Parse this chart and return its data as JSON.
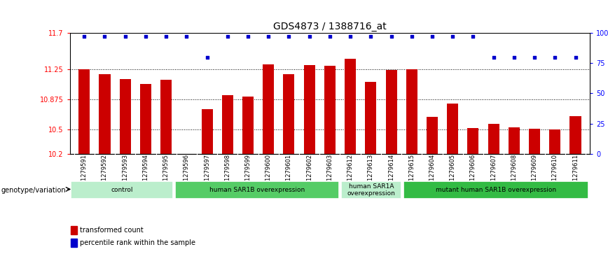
{
  "title": "GDS4873 / 1388716_at",
  "samples": [
    "GSM1279591",
    "GSM1279592",
    "GSM1279593",
    "GSM1279594",
    "GSM1279595",
    "GSM1279596",
    "GSM1279597",
    "GSM1279598",
    "GSM1279599",
    "GSM1279600",
    "GSM1279601",
    "GSM1279602",
    "GSM1279603",
    "GSM1279612",
    "GSM1279613",
    "GSM1279614",
    "GSM1279615",
    "GSM1279604",
    "GSM1279605",
    "GSM1279606",
    "GSM1279607",
    "GSM1279608",
    "GSM1279609",
    "GSM1279610",
    "GSM1279611"
  ],
  "bar_values": [
    11.25,
    11.19,
    11.13,
    11.07,
    11.12,
    10.2,
    10.75,
    10.93,
    10.91,
    11.31,
    11.19,
    11.3,
    11.29,
    11.38,
    11.09,
    11.24,
    11.25,
    10.66,
    10.82,
    10.52,
    10.57,
    10.53,
    10.51,
    10.5,
    10.67
  ],
  "percentile_values": [
    97,
    97,
    97,
    97,
    97,
    97,
    80,
    97,
    97,
    97,
    97,
    97,
    97,
    97,
    97,
    97,
    97,
    97,
    97,
    97,
    80,
    80,
    80,
    80,
    80
  ],
  "ylim": [
    10.2,
    11.7
  ],
  "yticks": [
    10.2,
    10.5,
    10.875,
    11.25,
    11.7
  ],
  "ytick_labels": [
    "10.2",
    "10.5",
    "10.875",
    "11.25",
    "11.7"
  ],
  "right_yticks": [
    0,
    25,
    50,
    75,
    100
  ],
  "right_ytick_labels": [
    "0",
    "25",
    "50",
    "75",
    "100%"
  ],
  "hlines": [
    10.5,
    10.875,
    11.25
  ],
  "bar_color": "#cc0000",
  "dot_color": "#0000cc",
  "groups": [
    {
      "label": "control",
      "start": 0,
      "end": 4,
      "color": "#bbeecc"
    },
    {
      "label": "human SAR1B overexpression",
      "start": 5,
      "end": 12,
      "color": "#55cc66"
    },
    {
      "label": "human SAR1A\noverexpression",
      "start": 13,
      "end": 15,
      "color": "#bbeecc"
    },
    {
      "label": "mutant human SAR1B overexpression",
      "start": 16,
      "end": 24,
      "color": "#33bb44"
    }
  ],
  "xtick_bg": "#cccccc",
  "genotype_label": "genotype/variation",
  "legend_bar_label": "transformed count",
  "legend_dot_label": "percentile rank within the sample",
  "title_fontsize": 10,
  "tick_fontsize": 6.5,
  "bar_width": 0.55
}
